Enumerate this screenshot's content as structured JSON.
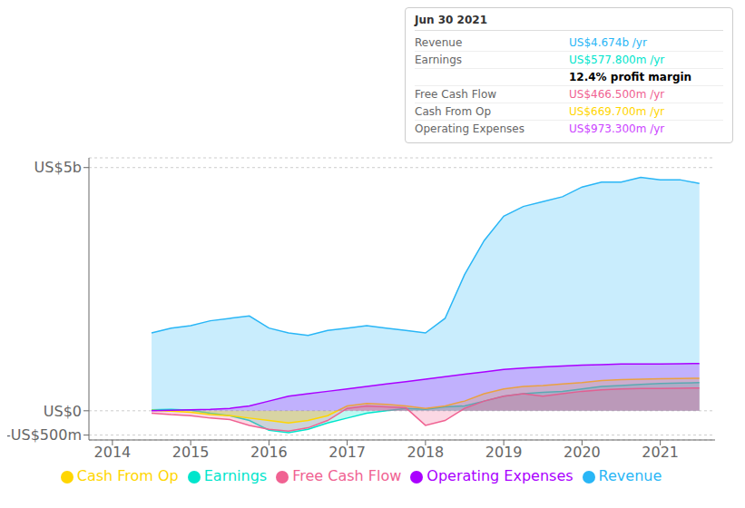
{
  "chart_data": {
    "type": "area",
    "x": [
      2014.5,
      2014.75,
      2015.0,
      2015.25,
      2015.5,
      2015.75,
      2016.0,
      2016.25,
      2016.5,
      2016.75,
      2017.0,
      2017.25,
      2017.5,
      2017.75,
      2018.0,
      2018.25,
      2018.5,
      2018.75,
      2019.0,
      2019.25,
      2019.5,
      2019.75,
      2020.0,
      2020.25,
      2020.5,
      2020.75,
      2021.0,
      2021.25,
      2021.5
    ],
    "series": [
      {
        "name": "Revenue",
        "color": "#29b6f6",
        "values": [
          1600,
          1700,
          1750,
          1850,
          1900,
          1950,
          1700,
          1600,
          1550,
          1650,
          1700,
          1750,
          1700,
          1650,
          1600,
          1900,
          2800,
          3500,
          4000,
          4200,
          4300,
          4400,
          4600,
          4700,
          4700,
          4800,
          4750,
          4750,
          4674
        ]
      },
      {
        "name": "Earnings",
        "color": "#00e5cc",
        "values": [
          20,
          30,
          10,
          -50,
          -100,
          -200,
          -400,
          -450,
          -380,
          -250,
          -150,
          -50,
          0,
          50,
          30,
          80,
          100,
          200,
          300,
          350,
          380,
          400,
          450,
          500,
          520,
          540,
          560,
          570,
          577.8
        ]
      },
      {
        "name": "Free Cash Flow",
        "color": "#f06292",
        "values": [
          -50,
          -80,
          -100,
          -150,
          -180,
          -300,
          -380,
          -420,
          -350,
          -200,
          50,
          100,
          80,
          60,
          -300,
          -200,
          50,
          200,
          300,
          350,
          300,
          350,
          400,
          430,
          450,
          460,
          460,
          465,
          466.5
        ]
      },
      {
        "name": "Cash From Op",
        "color": "#ffd600",
        "values": [
          10,
          -10,
          -30,
          -80,
          -100,
          -150,
          -200,
          -250,
          -200,
          -100,
          100,
          150,
          130,
          100,
          50,
          100,
          200,
          350,
          450,
          500,
          520,
          550,
          580,
          620,
          640,
          650,
          660,
          665,
          669.7
        ]
      },
      {
        "name": "Operating Expenses",
        "color": "#aa00ff",
        "values": [
          0,
          10,
          20,
          30,
          50,
          100,
          200,
          300,
          350,
          400,
          450,
          500,
          550,
          600,
          650,
          700,
          750,
          800,
          850,
          880,
          900,
          920,
          940,
          950,
          960,
          960,
          960,
          965,
          973.3
        ]
      }
    ],
    "xlim": [
      2013.7,
      2021.7
    ],
    "xticks": [
      2014,
      2015,
      2016,
      2017,
      2018,
      2019,
      2020,
      2021
    ],
    "ylim": [
      -600,
      5200
    ],
    "yticks": [
      {
        "value": -500,
        "label": "-US$500m"
      },
      {
        "value": 0,
        "label": "US$0"
      },
      {
        "value": 5000,
        "label": "US$5b"
      }
    ],
    "grid": true,
    "legend": "bottom",
    "annotations": [
      {
        "title": "Jun 30 2021",
        "rows": [
          {
            "label": "Revenue",
            "text": "US$4.674b /yr",
            "color": "#29b6f6"
          },
          {
            "label": "Earnings",
            "text": "US$577.800m /yr",
            "color": "#00e5cc"
          },
          {
            "text": "12.4% profit margin",
            "color": "#000000"
          },
          {
            "label": "Free Cash Flow",
            "text": "US$466.500m /yr",
            "color": "#f06292"
          },
          {
            "label": "Cash From Op",
            "text": "US$669.700m /yr",
            "color": "#ffd600"
          },
          {
            "label": "Operating Expenses",
            "text": "US$973.300m /yr",
            "color": "#cc44ff"
          }
        ]
      }
    ]
  }
}
